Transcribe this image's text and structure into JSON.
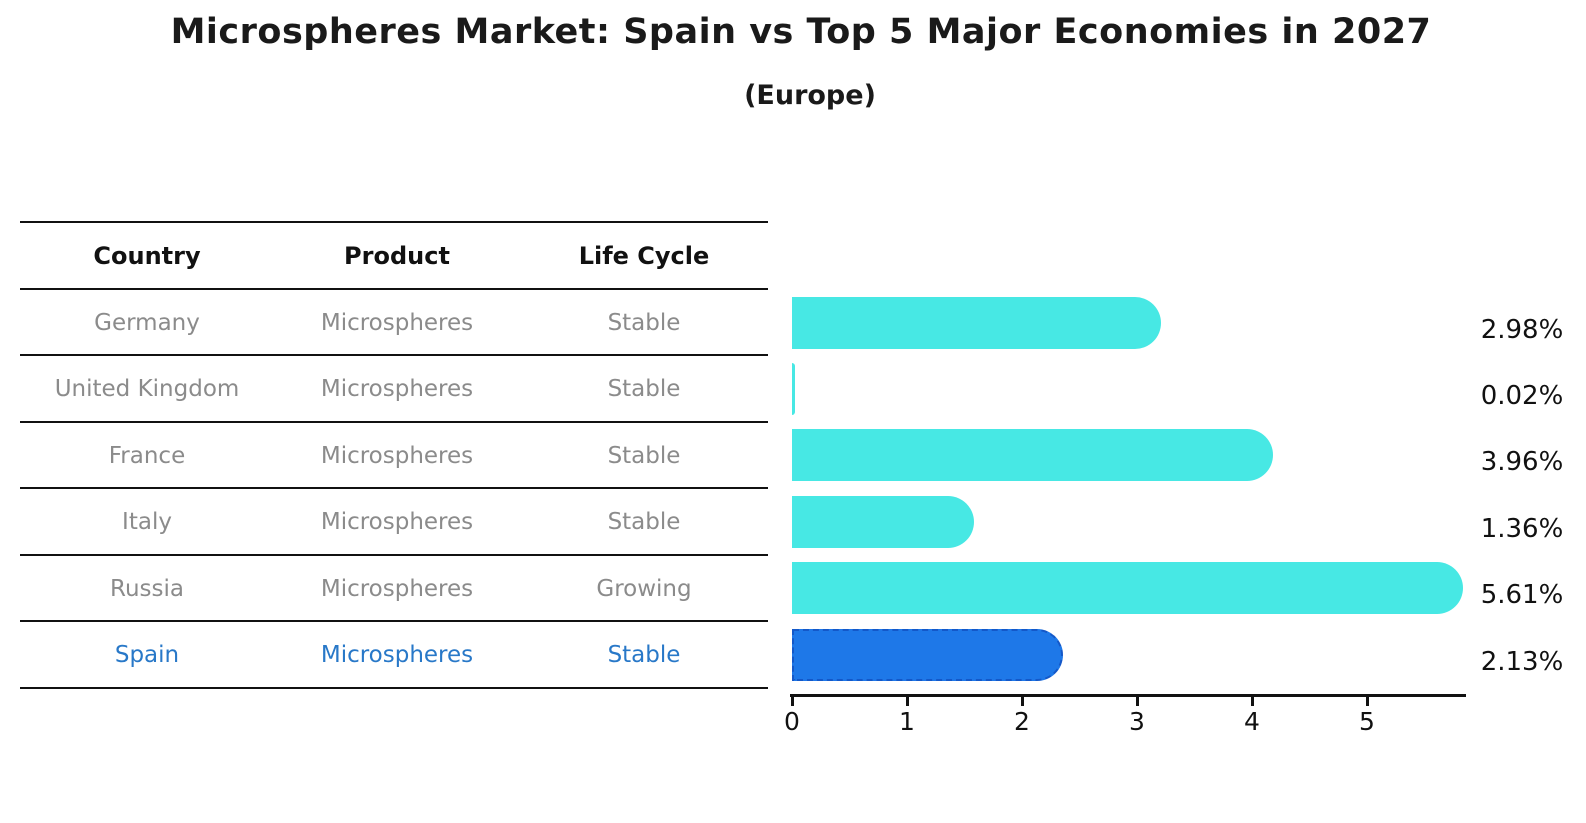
{
  "chart_data": {
    "type": "bar",
    "orientation": "horizontal",
    "title": "Microspheres Market: Spain vs Top 5 Major Economies in 2027",
    "subtitle": "(Europe)",
    "categories": [
      "Germany",
      "United Kingdom",
      "France",
      "Italy",
      "Russia",
      "Spain"
    ],
    "values": [
      2.98,
      0.02,
      3.96,
      1.36,
      5.61,
      2.13
    ],
    "value_labels": [
      "2.98%",
      "0.02%",
      "3.96%",
      "1.36%",
      "5.61%",
      "2.13%"
    ],
    "x_ticks": [
      "0",
      "1",
      "2",
      "3",
      "4",
      "5"
    ],
    "xlim": [
      0,
      5.85
    ],
    "grid": false,
    "legend": "none",
    "highlight_index": 5,
    "highlight_category": "Spain",
    "colors": {
      "bar": "#47e8e4",
      "highlight_bar": "#1e78e8",
      "highlight_border": "#1458c8",
      "row_text": "#8b8b8b",
      "highlight_text": "#2878c8",
      "axis": "#111111",
      "value_text": "#111111"
    },
    "table": {
      "columns": [
        "Country",
        "Product",
        "Life Cycle"
      ],
      "rows": [
        {
          "country": "Germany",
          "product": "Microspheres",
          "life_cycle": "Stable"
        },
        {
          "country": "United Kingdom",
          "product": "Microspheres",
          "life_cycle": "Stable"
        },
        {
          "country": "France",
          "product": "Microspheres",
          "life_cycle": "Stable"
        },
        {
          "country": "Italy",
          "product": "Microspheres",
          "life_cycle": "Stable"
        },
        {
          "country": "Russia",
          "product": "Microspheres",
          "life_cycle": "Growing"
        },
        {
          "country": "Spain",
          "product": "Microspheres",
          "life_cycle": "Stable"
        }
      ]
    }
  }
}
